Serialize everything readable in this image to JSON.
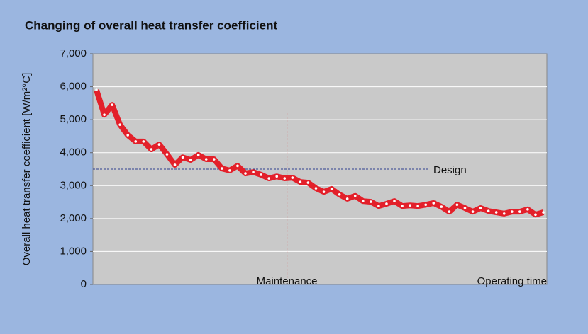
{
  "chart_data": {
    "type": "line",
    "title": "Changing of overall heat transfer coefficient",
    "y_label": "Overall heat transfer coefficient [W/m²°C]",
    "x_label": "Operating time",
    "ylim": [
      0,
      7000
    ],
    "yticks": [
      0,
      {
        "value": 1000,
        "label": "1,000"
      },
      {
        "value": 2000,
        "label": "2,000"
      },
      {
        "value": 3000,
        "label": "3,000"
      },
      {
        "value": 4000,
        "label": "4,000"
      },
      {
        "value": 5000,
        "label": "5,000"
      },
      {
        "value": 6000,
        "label": "6,000"
      },
      {
        "value": 7000,
        "label": "7,000"
      }
    ],
    "grid": true,
    "series": [
      {
        "color": "#e3202a",
        "values": [
          5900,
          5150,
          5450,
          4850,
          4530,
          4340,
          4340,
          4100,
          4250,
          3950,
          3630,
          3860,
          3780,
          3930,
          3800,
          3800,
          3520,
          3460,
          3600,
          3370,
          3410,
          3330,
          3220,
          3280,
          3220,
          3240,
          3110,
          3090,
          2920,
          2810,
          2900,
          2730,
          2600,
          2690,
          2530,
          2510,
          2380,
          2450,
          2530,
          2380,
          2400,
          2380,
          2420,
          2470,
          2360,
          2210,
          2420,
          2320,
          2210,
          2320,
          2230,
          2190,
          2150,
          2210,
          2210,
          2280,
          2120,
          2190
        ]
      }
    ],
    "annotations": [
      {
        "label": "Design",
        "y": 3500,
        "color": "#2f3f8f"
      },
      {
        "label": "Maintenance",
        "x": 24.3,
        "color": "#e3202a"
      }
    ]
  }
}
